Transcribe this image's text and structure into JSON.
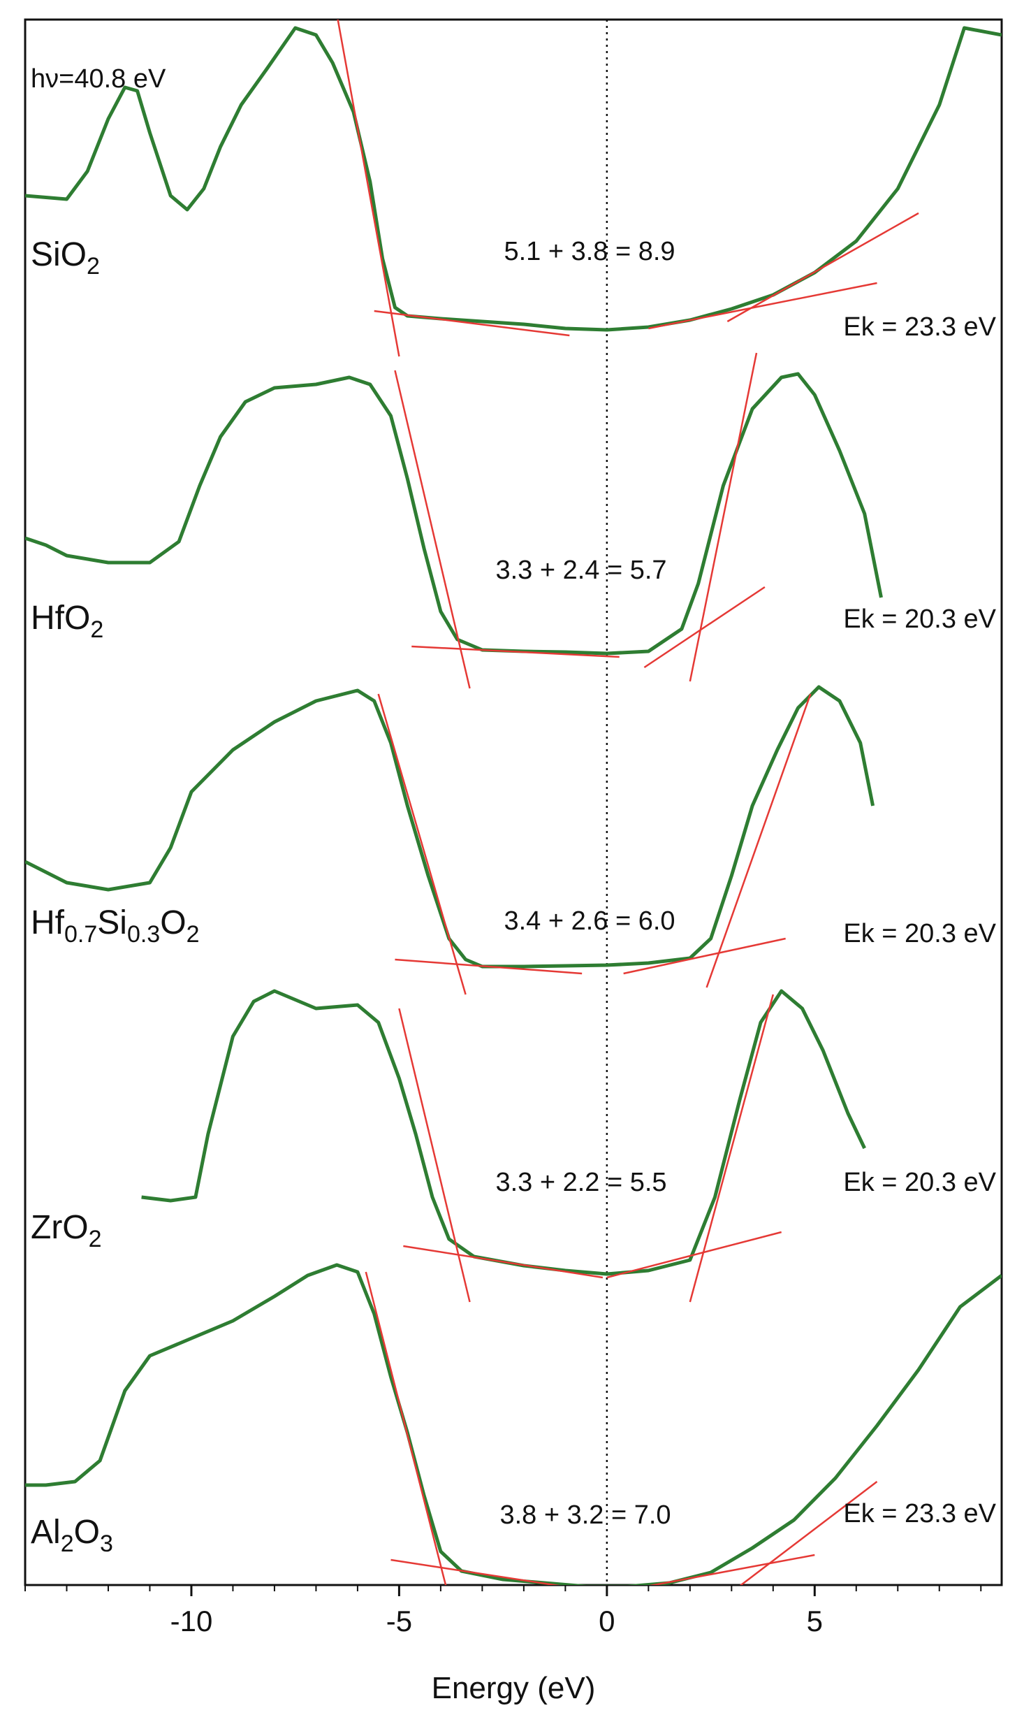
{
  "chart_data": {
    "type": "line",
    "title": "",
    "xlabel": "Energy (eV)",
    "ylabel": "",
    "xlim": [
      -14,
      9.5
    ],
    "x_ticks": [
      -10,
      -5,
      0,
      5
    ],
    "x_tick_labels": [
      "-10",
      "-5",
      "0",
      "5"
    ],
    "grid": false,
    "reference_line_x": 0,
    "photon_energy_label": "hν=40.8 eV",
    "colors": {
      "curve": "#2e7d32",
      "fit": "#e53935",
      "axis": "#111111"
    },
    "series": [
      {
        "name": "SiO2",
        "label_main": "SiO",
        "label_sub": "2",
        "ek_label": "Ek = 23.3 eV",
        "gap_label": "5.1 + 3.8 = 8.9",
        "points": [
          [
            -14,
            2.0
          ],
          [
            -13,
            1.95
          ],
          [
            -12.5,
            2.35
          ],
          [
            -12,
            3.1
          ],
          [
            -11.6,
            3.55
          ],
          [
            -11.3,
            3.5
          ],
          [
            -11,
            2.9
          ],
          [
            -10.5,
            2.0
          ],
          [
            -10.1,
            1.8
          ],
          [
            -9.7,
            2.1
          ],
          [
            -9.3,
            2.7
          ],
          [
            -8.8,
            3.3
          ],
          [
            -8.2,
            3.8
          ],
          [
            -7.5,
            4.4
          ],
          [
            -7.0,
            4.3
          ],
          [
            -6.6,
            3.9
          ],
          [
            -6.1,
            3.2
          ],
          [
            -5.7,
            2.2
          ],
          [
            -5.4,
            1.1
          ],
          [
            -5.1,
            0.4
          ],
          [
            -4.8,
            0.28
          ],
          [
            -4.0,
            0.24
          ],
          [
            -3,
            0.2
          ],
          [
            -2,
            0.16
          ],
          [
            -1,
            0.1
          ],
          [
            0,
            0.08
          ],
          [
            1,
            0.12
          ],
          [
            2,
            0.22
          ],
          [
            3,
            0.38
          ],
          [
            4,
            0.58
          ],
          [
            5,
            0.9
          ],
          [
            6,
            1.35
          ],
          [
            7,
            2.1
          ],
          [
            8,
            3.3
          ],
          [
            8.6,
            4.4
          ],
          [
            9.5,
            4.3
          ]
        ],
        "fit_lines": [
          [
            [
              -6.5,
              4.6
            ],
            [
              -5.0,
              -0.3
            ]
          ],
          [
            [
              -5.6,
              0.35
            ],
            [
              -0.9,
              0.0
            ]
          ],
          [
            [
              1.0,
              0.1
            ],
            [
              6.5,
              0.75
            ]
          ],
          [
            [
              2.9,
              0.2
            ],
            [
              7.5,
              1.75
            ]
          ]
        ]
      },
      {
        "name": "HfO2",
        "label_main": "HfO",
        "label_sub": "2",
        "ek_label": "Ek = 20.3 eV",
        "gap_label": "3.3 + 2.4 = 5.7",
        "points": [
          [
            -14,
            1.65
          ],
          [
            -13.5,
            1.55
          ],
          [
            -13,
            1.4
          ],
          [
            -12,
            1.3
          ],
          [
            -11,
            1.3
          ],
          [
            -10.3,
            1.6
          ],
          [
            -9.8,
            2.4
          ],
          [
            -9.3,
            3.1
          ],
          [
            -8.7,
            3.6
          ],
          [
            -8.0,
            3.8
          ],
          [
            -7.0,
            3.85
          ],
          [
            -6.2,
            3.95
          ],
          [
            -5.7,
            3.85
          ],
          [
            -5.2,
            3.4
          ],
          [
            -4.8,
            2.5
          ],
          [
            -4.4,
            1.5
          ],
          [
            -4.0,
            0.6
          ],
          [
            -3.6,
            0.2
          ],
          [
            -3.0,
            0.05
          ],
          [
            -2,
            0.03
          ],
          [
            -1,
            0.02
          ],
          [
            0,
            0.0
          ],
          [
            1,
            0.03
          ],
          [
            1.8,
            0.35
          ],
          [
            2.2,
            1.0
          ],
          [
            2.8,
            2.4
          ],
          [
            3.5,
            3.5
          ],
          [
            4.2,
            3.95
          ],
          [
            4.6,
            4.0
          ],
          [
            5.0,
            3.7
          ],
          [
            5.6,
            2.9
          ],
          [
            6.2,
            2.0
          ],
          [
            6.6,
            0.8
          ]
        ],
        "fit_lines": [
          [
            [
              -5.1,
              4.05
            ],
            [
              -3.3,
              -0.5
            ]
          ],
          [
            [
              -4.7,
              0.1
            ],
            [
              0.3,
              -0.05
            ]
          ],
          [
            [
              2.0,
              -0.4
            ],
            [
              3.6,
              4.3
            ]
          ],
          [
            [
              0.9,
              -0.2
            ],
            [
              3.8,
              0.95
            ]
          ]
        ]
      },
      {
        "name": "Hf0.7Si0.3O2",
        "label_main": "Hf",
        "label_sub1": "0.7",
        "label_mid": "Si",
        "label_sub2": "0.3",
        "label_end": "O",
        "label_sub3": "2",
        "ek_label": "Ek = 20.3 eV",
        "gap_label": "3.4 + 2.6 = 6.0",
        "points": [
          [
            -14,
            1.5
          ],
          [
            -13,
            1.2
          ],
          [
            -12,
            1.1
          ],
          [
            -11,
            1.2
          ],
          [
            -10.5,
            1.7
          ],
          [
            -10,
            2.5
          ],
          [
            -9,
            3.1
          ],
          [
            -8,
            3.5
          ],
          [
            -7,
            3.8
          ],
          [
            -6,
            3.95
          ],
          [
            -5.6,
            3.8
          ],
          [
            -5.2,
            3.2
          ],
          [
            -4.8,
            2.3
          ],
          [
            -4.3,
            1.3
          ],
          [
            -3.8,
            0.4
          ],
          [
            -3.4,
            0.1
          ],
          [
            -3,
            0.0
          ],
          [
            -2,
            0.0
          ],
          [
            -1,
            0.01
          ],
          [
            0,
            0.02
          ],
          [
            1,
            0.05
          ],
          [
            2,
            0.12
          ],
          [
            2.5,
            0.4
          ],
          [
            3.0,
            1.3
          ],
          [
            3.5,
            2.3
          ],
          [
            4.1,
            3.1
          ],
          [
            4.6,
            3.7
          ],
          [
            5.1,
            4.0
          ],
          [
            5.6,
            3.8
          ],
          [
            6.1,
            3.2
          ],
          [
            6.4,
            2.3
          ]
        ],
        "fit_lines": [
          [
            [
              -5.5,
              3.9
            ],
            [
              -3.4,
              -0.4
            ]
          ],
          [
            [
              -5.1,
              0.1
            ],
            [
              -0.6,
              -0.1
            ]
          ],
          [
            [
              2.4,
              -0.3
            ],
            [
              4.9,
              3.9
            ]
          ],
          [
            [
              0.4,
              -0.1
            ],
            [
              4.3,
              0.4
            ]
          ]
        ]
      },
      {
        "name": "ZrO2",
        "label_main": "ZrO",
        "label_sub": "2",
        "ek_label": "Ek = 20.3 eV",
        "gap_label": "3.3 + 2.2 = 5.5",
        "points": [
          [
            -11.2,
            1.1
          ],
          [
            -10.5,
            1.05
          ],
          [
            -9.9,
            1.1
          ],
          [
            -9.6,
            2.0
          ],
          [
            -9.0,
            3.4
          ],
          [
            -8.5,
            3.9
          ],
          [
            -8.0,
            4.05
          ],
          [
            -7.0,
            3.8
          ],
          [
            -6.0,
            3.85
          ],
          [
            -5.5,
            3.6
          ],
          [
            -5.0,
            2.8
          ],
          [
            -4.6,
            2.0
          ],
          [
            -4.2,
            1.1
          ],
          [
            -3.8,
            0.5
          ],
          [
            -3.2,
            0.25
          ],
          [
            -2,
            0.12
          ],
          [
            -1,
            0.05
          ],
          [
            0,
            0.0
          ],
          [
            1,
            0.05
          ],
          [
            2.0,
            0.2
          ],
          [
            2.6,
            1.1
          ],
          [
            3.2,
            2.5
          ],
          [
            3.7,
            3.6
          ],
          [
            4.2,
            4.05
          ],
          [
            4.7,
            3.8
          ],
          [
            5.2,
            3.2
          ],
          [
            5.8,
            2.3
          ],
          [
            6.2,
            1.8
          ]
        ],
        "fit_lines": [
          [
            [
              -5.0,
              3.8
            ],
            [
              -3.3,
              -0.4
            ]
          ],
          [
            [
              -4.9,
              0.4
            ],
            [
              -0.1,
              -0.05
            ]
          ],
          [
            [
              2.0,
              -0.4
            ],
            [
              4.0,
              4.0
            ]
          ],
          [
            [
              0.0,
              -0.05
            ],
            [
              4.2,
              0.6
            ]
          ]
        ]
      },
      {
        "name": "Al2O3",
        "label_main": "Al",
        "label_sub1": "2",
        "label_mid": "O",
        "label_sub2": "3",
        "ek_label": "Ek = 23.3 eV",
        "gap_label": "3.8 + 3.2 = 7.0",
        "points": [
          [
            -14,
            1.45
          ],
          [
            -13.5,
            1.45
          ],
          [
            -12.8,
            1.5
          ],
          [
            -12.2,
            1.8
          ],
          [
            -11.6,
            2.8
          ],
          [
            -11.0,
            3.3
          ],
          [
            -10.0,
            3.55
          ],
          [
            -9.0,
            3.8
          ],
          [
            -8.0,
            4.15
          ],
          [
            -7.2,
            4.45
          ],
          [
            -6.5,
            4.6
          ],
          [
            -6.0,
            4.5
          ],
          [
            -5.6,
            3.9
          ],
          [
            -5.2,
            3.0
          ],
          [
            -4.8,
            2.2
          ],
          [
            -4.4,
            1.3
          ],
          [
            -4.0,
            0.5
          ],
          [
            -3.5,
            0.22
          ],
          [
            -2.5,
            0.1
          ],
          [
            -1.5,
            0.05
          ],
          [
            -0.5,
            0.0
          ],
          [
            0.5,
            0.0
          ],
          [
            1.5,
            0.05
          ],
          [
            2.5,
            0.2
          ],
          [
            3.5,
            0.55
          ],
          [
            4.5,
            0.95
          ],
          [
            5.5,
            1.55
          ],
          [
            6.5,
            2.3
          ],
          [
            7.5,
            3.1
          ],
          [
            8.5,
            4.0
          ],
          [
            9.5,
            4.45
          ]
        ],
        "fit_lines": [
          [
            [
              -5.8,
              4.5
            ],
            [
              -3.7,
              -0.4
            ]
          ],
          [
            [
              -5.2,
              0.38
            ],
            [
              -0.5,
              -0.05
            ]
          ],
          [
            [
              0.5,
              -0.05
            ],
            [
              5.0,
              0.45
            ]
          ],
          [
            [
              2.3,
              -0.4
            ],
            [
              6.5,
              1.5
            ]
          ]
        ]
      }
    ]
  }
}
